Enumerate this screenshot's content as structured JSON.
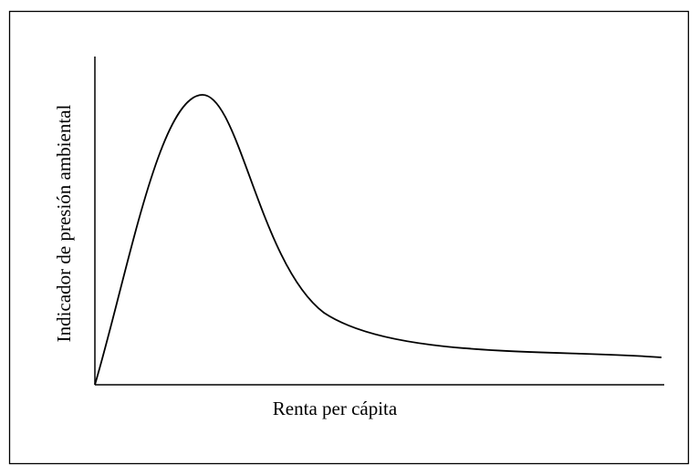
{
  "axes": {
    "x_label": "Renta per cápita",
    "y_label": "Indicador de presión ambiental"
  }
}
